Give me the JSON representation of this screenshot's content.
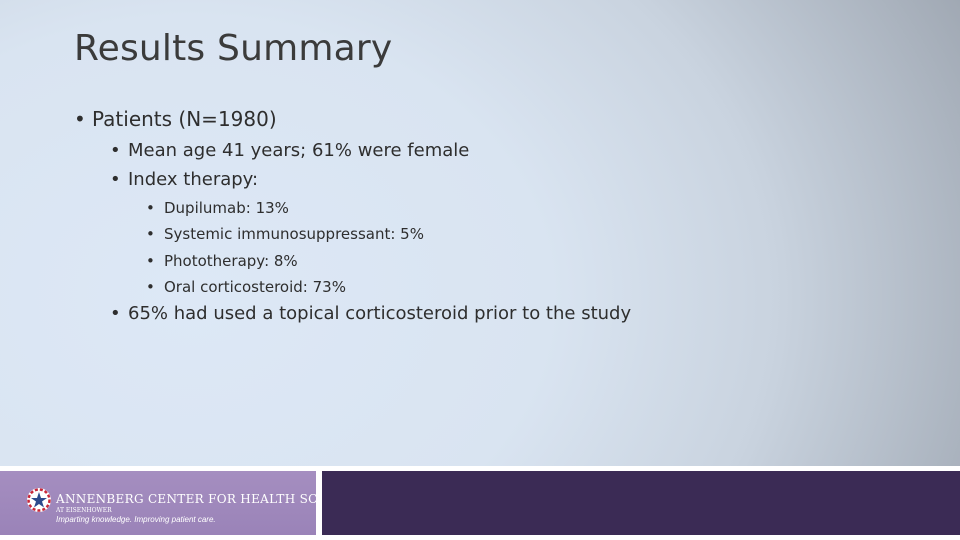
{
  "slide": {
    "title": "Results Summary",
    "bullets": {
      "patients": "Patients (N=1980)",
      "mean_age": "Mean age 41 years; 61% were female",
      "index_therapy": "Index therapy:",
      "therapies": [
        "Dupilumab: 13%",
        "Systemic immunosuppressant: 5%",
        "Phototherapy: 8%",
        "Oral corticosteroid: 73%"
      ],
      "topical": "65% had used a topical corticosteroid prior to the study"
    },
    "bullet_glyph": "•"
  },
  "footer": {
    "org_name": "ANNENBERG CENTER FOR HEALTH SCIENCES",
    "org_sub": "AT EISENHOWER",
    "tagline": "Imparting knowledge. Improving patient care.",
    "colors": {
      "left_panel": "#9a83b8",
      "right_panel": "#3b2b55",
      "logo_red": "#c8283a",
      "logo_blue": "#2c4a8c"
    },
    "logo_icon": "star-emblem-icon"
  }
}
